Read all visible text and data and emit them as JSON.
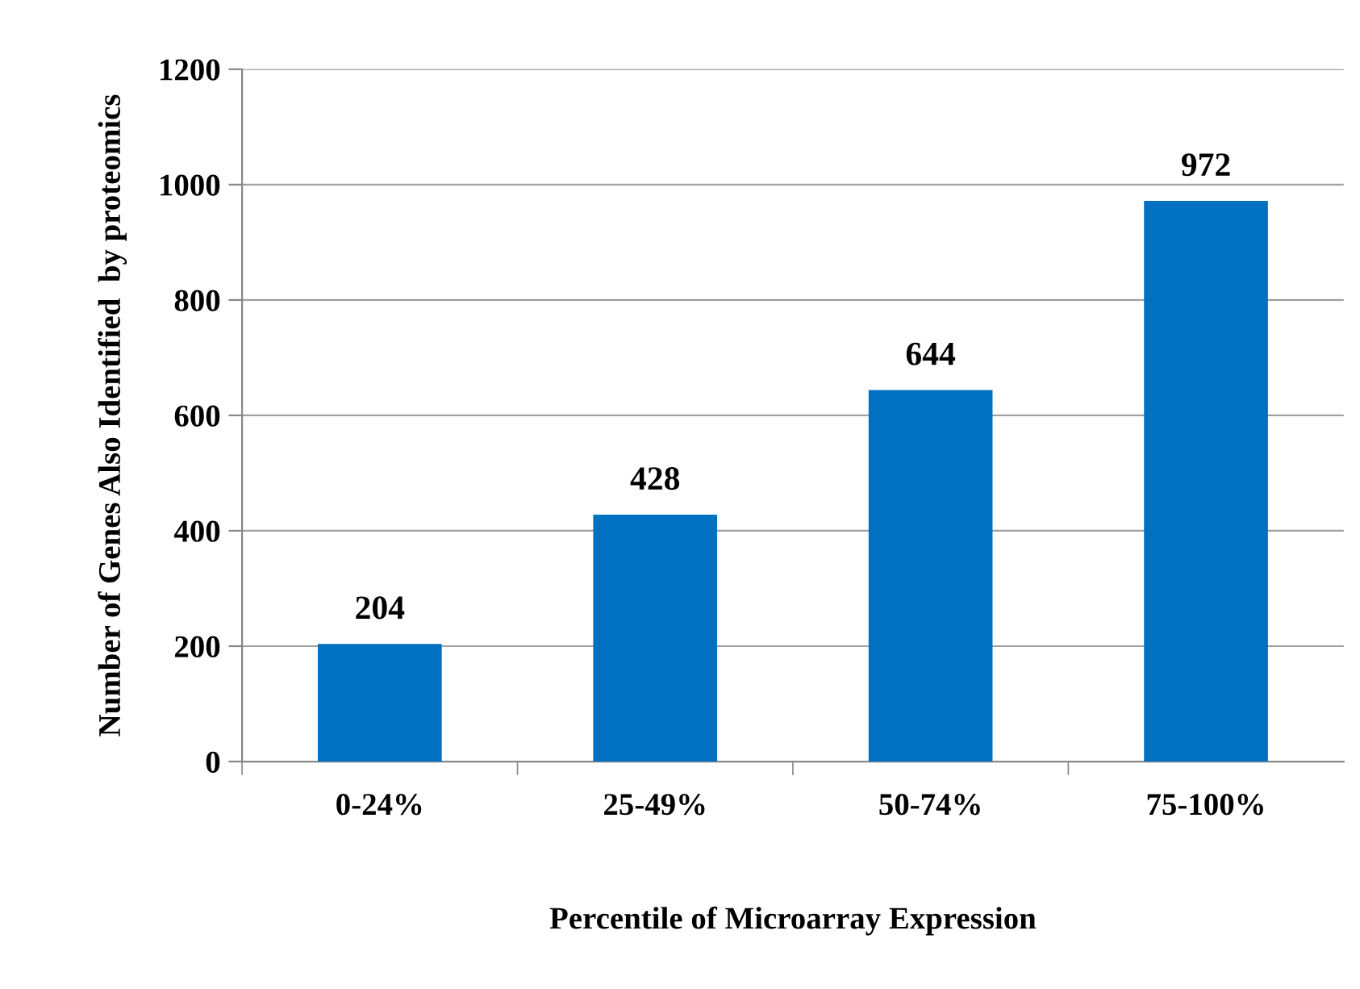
{
  "chart_data": {
    "type": "bar",
    "xlabel": "Percentile of Microarray Expression",
    "ylabel": "Number of Genes Also Identified  by proteomics",
    "categories": [
      "0-24%",
      "25-49%",
      "50-74%",
      "75-100%"
    ],
    "values": [
      204,
      428,
      644,
      972
    ],
    "color": "#0070c0",
    "ylim": [
      0,
      1200
    ],
    "yticks": [
      0,
      200,
      400,
      600,
      800,
      1000,
      1200
    ],
    "grid": "y",
    "data_labels": true
  }
}
